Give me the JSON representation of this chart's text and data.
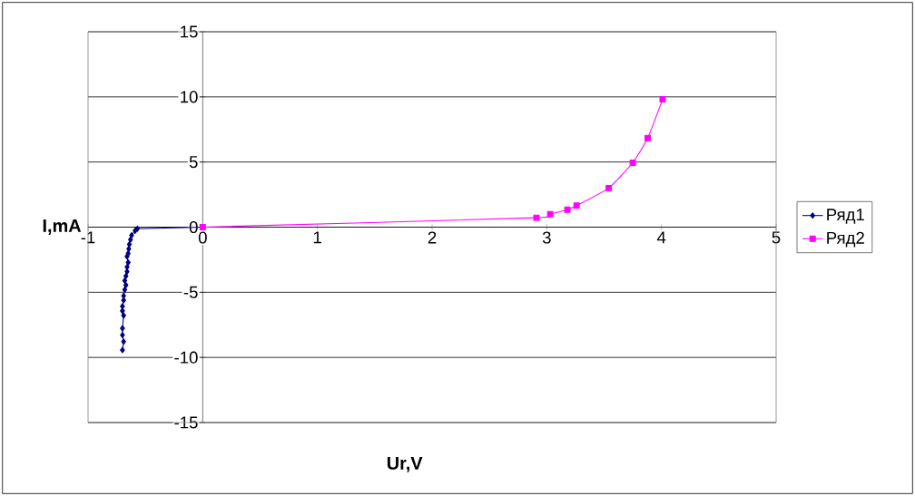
{
  "chart_data": {
    "type": "line",
    "xlabel": "Ur,V",
    "ylabel": "I,mA",
    "xlim": [
      -1,
      5
    ],
    "xticks": [
      -1,
      0,
      1,
      2,
      3,
      4,
      5
    ],
    "ylim": [
      -15,
      15
    ],
    "yticks": [
      -15,
      -10,
      -5,
      0,
      5,
      10,
      15
    ],
    "grid": "y",
    "legend": "right",
    "series": [
      {
        "name": "Ряд1",
        "color": "#000080",
        "marker": "diamond",
        "x": [
          0,
          -0.57,
          -0.59,
          -0.62,
          -0.63,
          -0.64,
          -0.645,
          -0.65,
          -0.66,
          -0.65,
          -0.66,
          -0.66,
          -0.67,
          -0.68,
          -0.67,
          -0.68,
          -0.69,
          -0.69,
          -0.7,
          -0.7,
          -0.69,
          -0.7,
          -0.7,
          -0.69,
          -0.7
        ],
        "values": [
          0,
          -0.12,
          -0.28,
          -0.63,
          -0.96,
          -1.32,
          -1.67,
          -2.02,
          -2.25,
          -2.71,
          -3.06,
          -3.41,
          -3.76,
          -4.11,
          -4.45,
          -4.8,
          -5.27,
          -5.61,
          -6.08,
          -6.43,
          -6.78,
          -7.77,
          -8.28,
          -8.79,
          -9.44
        ]
      },
      {
        "name": "Ряд2",
        "color": "#ff00ff",
        "marker": "square",
        "x": [
          0,
          2.91,
          3.03,
          3.18,
          3.26,
          3.54,
          3.75,
          3.88,
          4.01
        ],
        "values": [
          0,
          0.72,
          1.0,
          1.34,
          1.65,
          3.0,
          4.94,
          6.84,
          9.81
        ]
      }
    ]
  }
}
